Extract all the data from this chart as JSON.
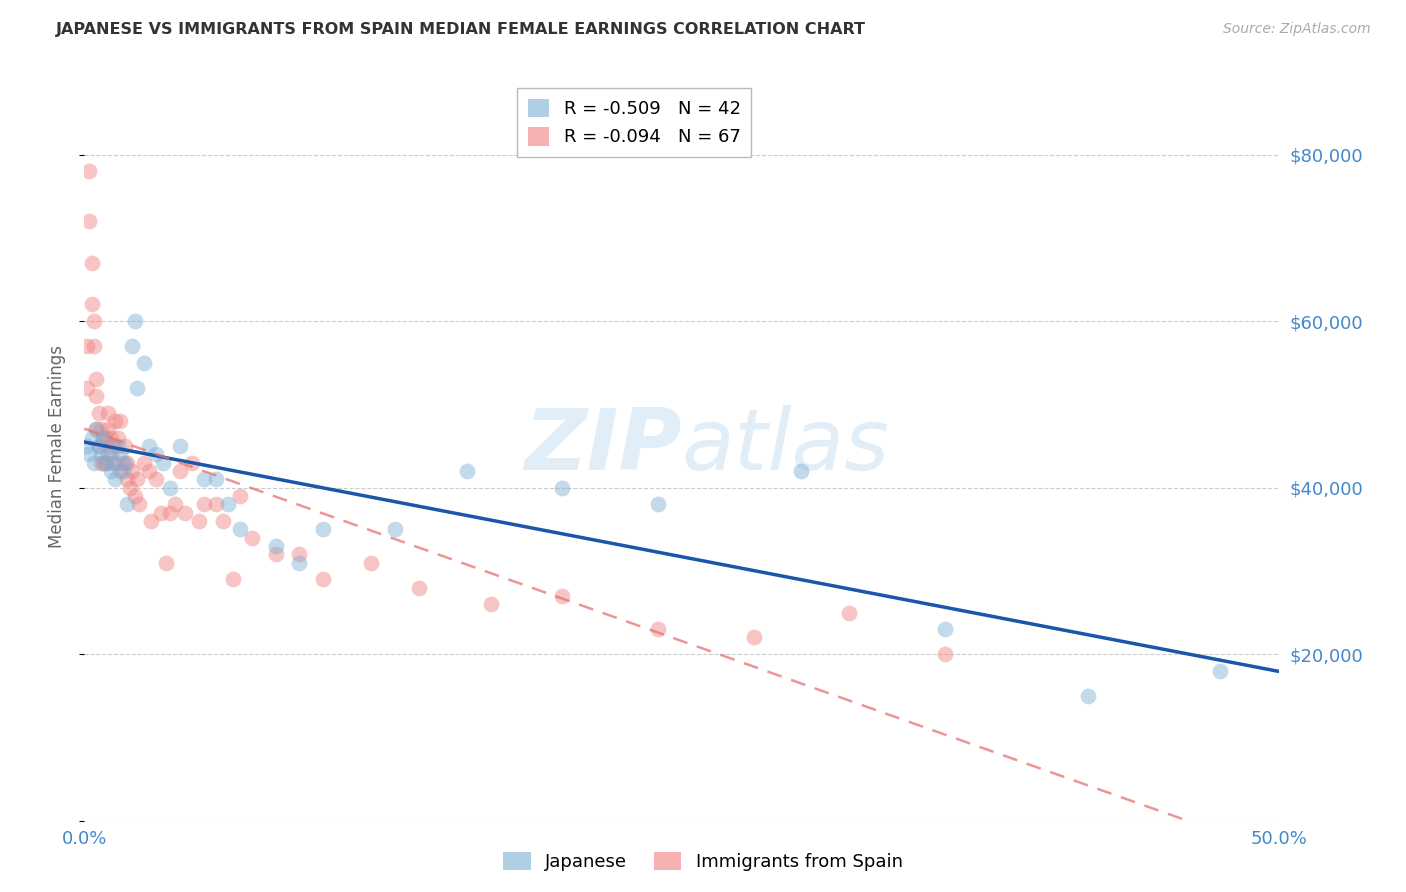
{
  "title": "JAPANESE VS IMMIGRANTS FROM SPAIN MEDIAN FEMALE EARNINGS CORRELATION CHART",
  "source": "Source: ZipAtlas.com",
  "ylabel": "Median Female Earnings",
  "right_yticks": [
    0,
    20000,
    40000,
    60000,
    80000
  ],
  "right_yticklabels": [
    "",
    "$20,000",
    "$40,000",
    "$60,000",
    "$80,000"
  ],
  "xlim": [
    0.0,
    0.5
  ],
  "ylim": [
    0,
    90000
  ],
  "japanese_R": "-0.509",
  "japanese_N": "42",
  "spain_R": "-0.094",
  "spain_N": "67",
  "japanese_color": "#7BAFD4",
  "spain_color": "#F08080",
  "trendline_japan_color": "#1A56AA",
  "trendline_spain_color": "#E87070",
  "japanese_x": [
    0.001,
    0.002,
    0.003,
    0.004,
    0.005,
    0.006,
    0.007,
    0.008,
    0.009,
    0.01,
    0.011,
    0.012,
    0.013,
    0.014,
    0.015,
    0.016,
    0.017,
    0.018,
    0.02,
    0.021,
    0.022,
    0.025,
    0.027,
    0.03,
    0.033,
    0.036,
    0.04,
    0.05,
    0.055,
    0.06,
    0.065,
    0.08,
    0.09,
    0.1,
    0.13,
    0.16,
    0.2,
    0.24,
    0.3,
    0.36,
    0.42,
    0.475
  ],
  "japanese_y": [
    45000,
    44000,
    46000,
    43000,
    47000,
    45000,
    44000,
    46000,
    43000,
    44000,
    42000,
    43000,
    41000,
    45000,
    44000,
    42000,
    43000,
    38000,
    57000,
    60000,
    52000,
    55000,
    45000,
    44000,
    43000,
    40000,
    45000,
    41000,
    41000,
    38000,
    35000,
    33000,
    31000,
    35000,
    35000,
    42000,
    40000,
    38000,
    42000,
    23000,
    15000,
    18000
  ],
  "spain_x": [
    0.001,
    0.001,
    0.002,
    0.002,
    0.003,
    0.003,
    0.004,
    0.004,
    0.005,
    0.005,
    0.005,
    0.006,
    0.006,
    0.007,
    0.007,
    0.008,
    0.008,
    0.009,
    0.009,
    0.01,
    0.01,
    0.011,
    0.011,
    0.012,
    0.013,
    0.013,
    0.014,
    0.015,
    0.015,
    0.016,
    0.017,
    0.018,
    0.018,
    0.019,
    0.02,
    0.021,
    0.022,
    0.023,
    0.025,
    0.027,
    0.028,
    0.03,
    0.032,
    0.034,
    0.036,
    0.038,
    0.04,
    0.042,
    0.045,
    0.048,
    0.05,
    0.055,
    0.058,
    0.062,
    0.065,
    0.07,
    0.08,
    0.09,
    0.1,
    0.12,
    0.14,
    0.17,
    0.2,
    0.24,
    0.28,
    0.32,
    0.36
  ],
  "spain_y": [
    57000,
    52000,
    78000,
    72000,
    67000,
    62000,
    57000,
    60000,
    51000,
    53000,
    47000,
    49000,
    45000,
    47000,
    43000,
    46000,
    43000,
    46000,
    43000,
    47000,
    49000,
    44000,
    46000,
    45000,
    43000,
    48000,
    46000,
    48000,
    42000,
    43000,
    45000,
    41000,
    43000,
    40000,
    42000,
    39000,
    41000,
    38000,
    43000,
    42000,
    36000,
    41000,
    37000,
    31000,
    37000,
    38000,
    42000,
    37000,
    43000,
    36000,
    38000,
    38000,
    36000,
    29000,
    39000,
    34000,
    32000,
    32000,
    29000,
    31000,
    28000,
    26000,
    27000,
    23000,
    22000,
    25000,
    20000
  ],
  "background_color": "#FFFFFF",
  "grid_color": "#CCCCCC",
  "title_color": "#333333",
  "axis_label_color": "#4488CC",
  "source_color": "#AAAAAA",
  "ylabel_color": "#666666",
  "watermark_color": "#C5DCF0",
  "watermark_alpha": 0.5
}
